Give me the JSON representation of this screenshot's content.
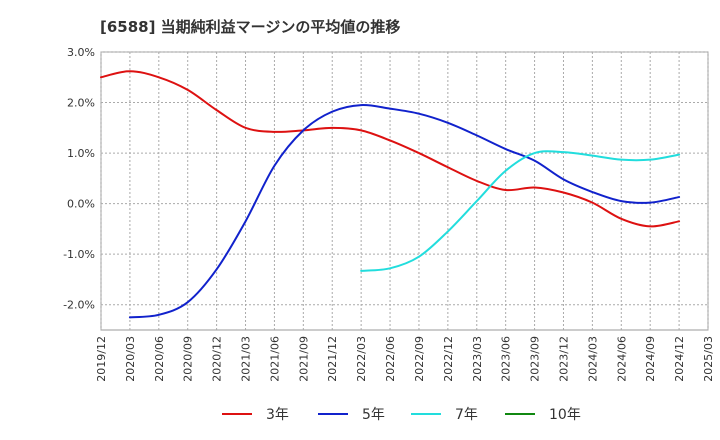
{
  "chart_data": {
    "type": "line",
    "title": "[6588]  当期純利益マージンの平均値の推移",
    "xlabel": "",
    "ylabel": "",
    "ylim": [
      -2.5,
      3.0
    ],
    "y_ticks": [
      3.0,
      2.0,
      1.0,
      0.0,
      -1.0,
      -2.0
    ],
    "y_tick_labels": [
      "3.0%",
      "2.0%",
      "1.0%",
      "0.0%",
      "-1.0%",
      "-2.0%"
    ],
    "x_range": [
      "2019/12",
      "2025/03"
    ],
    "x_tick_labels": [
      "2019/12",
      "2020/03",
      "2020/06",
      "2020/09",
      "2020/12",
      "2021/03",
      "2021/06",
      "2021/09",
      "2021/12",
      "2022/03",
      "2022/06",
      "2022/09",
      "2022/12",
      "2023/03",
      "2023/06",
      "2023/09",
      "2023/12",
      "2024/03",
      "2024/06",
      "2024/09",
      "2024/12",
      "2025/03"
    ],
    "grid": true,
    "legend_position": "bottom",
    "series": [
      {
        "name": "3年",
        "color": "#dd1111",
        "x": [
          "2019/12",
          "2020/03",
          "2020/06",
          "2020/09",
          "2020/12",
          "2021/03",
          "2021/06",
          "2021/09",
          "2021/12",
          "2022/03",
          "2022/06",
          "2022/09",
          "2022/12",
          "2023/03",
          "2023/06",
          "2023/09",
          "2023/12",
          "2024/03",
          "2024/06",
          "2024/09",
          "2024/12"
        ],
        "values": [
          2.5,
          2.62,
          2.5,
          2.25,
          1.85,
          1.5,
          1.42,
          1.45,
          1.5,
          1.45,
          1.25,
          1.0,
          0.72,
          0.45,
          0.27,
          0.32,
          0.22,
          0.02,
          -0.3,
          -0.45,
          -0.35
        ]
      },
      {
        "name": "5年",
        "color": "#1122cc",
        "x": [
          "2020/03",
          "2020/06",
          "2020/09",
          "2020/12",
          "2021/03",
          "2021/06",
          "2021/09",
          "2021/12",
          "2022/03",
          "2022/06",
          "2022/09",
          "2022/12",
          "2023/03",
          "2023/06",
          "2023/09",
          "2023/12",
          "2024/03",
          "2024/06",
          "2024/09",
          "2024/12"
        ],
        "values": [
          -2.25,
          -2.2,
          -1.95,
          -1.3,
          -0.35,
          0.75,
          1.45,
          1.82,
          1.95,
          1.88,
          1.78,
          1.6,
          1.35,
          1.08,
          0.85,
          0.48,
          0.23,
          0.05,
          0.02,
          0.13
        ]
      },
      {
        "name": "7年",
        "color": "#22dddd",
        "x": [
          "2022/03",
          "2022/06",
          "2022/09",
          "2022/12",
          "2023/03",
          "2023/06",
          "2023/09",
          "2023/12",
          "2024/03",
          "2024/06",
          "2024/09",
          "2024/12"
        ],
        "values": [
          -1.33,
          -1.28,
          -1.05,
          -0.55,
          0.05,
          0.65,
          1.0,
          1.02,
          0.95,
          0.87,
          0.87,
          0.97
        ]
      },
      {
        "name": "10年",
        "color": "#118811",
        "x": [],
        "values": []
      }
    ]
  }
}
